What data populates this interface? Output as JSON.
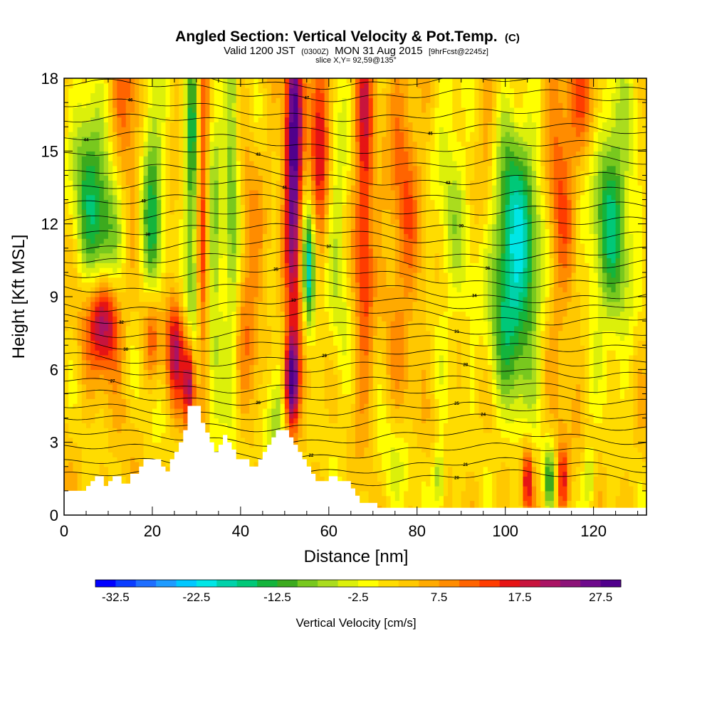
{
  "chart_data": {
    "type": "heatmap",
    "title": "Angled Section: Vertical Velocity & Pot.Temp.",
    "title_suffix": "(C)",
    "subtitle_main": "Valid 1200 JST",
    "subtitle_utc": "(0300Z)",
    "subtitle_date": "MON 31 Aug 2015",
    "subtitle_fcst": "[9hrFcst@2245z]",
    "subtitle2": "slice X,Y= 92,59@135°",
    "xlabel": "Distance [nm]",
    "ylabel": "Height [Kft MSL]",
    "xlim": [
      0,
      132
    ],
    "ylim": [
      0,
      18
    ],
    "x_ticks": [
      0,
      20,
      40,
      60,
      80,
      100,
      120
    ],
    "y_ticks": [
      0,
      3,
      6,
      9,
      12,
      15,
      18
    ],
    "colorbar": {
      "label": "Vertical Velocity [cm/s]",
      "min": -35,
      "max": 30,
      "step": 2.5,
      "tick_values": [
        "-32.5",
        "-22.5",
        "-12.5",
        "-2.5",
        "7.5",
        "17.5",
        "27.5"
      ],
      "colors": [
        "#0000ff",
        "#0a3cff",
        "#1e6eff",
        "#1e9bff",
        "#00c8ff",
        "#00e6e6",
        "#00d2aa",
        "#00c878",
        "#14b43c",
        "#3caa1e",
        "#78c81e",
        "#aadc1e",
        "#dcf00a",
        "#ffff00",
        "#ffdc00",
        "#ffc800",
        "#ffaa00",
        "#ff8c00",
        "#ff6400",
        "#ff3c00",
        "#e61414",
        "#c8143c",
        "#aa1464",
        "#8c1478",
        "#6e0a8c",
        "#50008c"
      ]
    },
    "terrain": [
      [
        0,
        0
      ],
      [
        0,
        1
      ],
      [
        5,
        1
      ],
      [
        5,
        1.2
      ],
      [
        6,
        1.2
      ],
      [
        6,
        1.4
      ],
      [
        7,
        1.4
      ],
      [
        7,
        1.6
      ],
      [
        9,
        1.6
      ],
      [
        9,
        1.2
      ],
      [
        10,
        1.2
      ],
      [
        10,
        1.4
      ],
      [
        11,
        1.4
      ],
      [
        11,
        1.6
      ],
      [
        13,
        1.6
      ],
      [
        13,
        1.3
      ],
      [
        15,
        1.3
      ],
      [
        15,
        1.7
      ],
      [
        17,
        1.7
      ],
      [
        17,
        2.0
      ],
      [
        18,
        2.0
      ],
      [
        18,
        2.3
      ],
      [
        22,
        2.3
      ],
      [
        22,
        2.0
      ],
      [
        23,
        2.0
      ],
      [
        23,
        1.8
      ],
      [
        24,
        1.8
      ],
      [
        24,
        2.3
      ],
      [
        25,
        2.3
      ],
      [
        25,
        2.6
      ],
      [
        26,
        2.6
      ],
      [
        26,
        3.0
      ],
      [
        27,
        3.0
      ],
      [
        27,
        3.5
      ],
      [
        28,
        3.5
      ],
      [
        28,
        4.5
      ],
      [
        31,
        4.5
      ],
      [
        31,
        3.8
      ],
      [
        32,
        3.8
      ],
      [
        32,
        3.4
      ],
      [
        33,
        3.4
      ],
      [
        33,
        3.0
      ],
      [
        34,
        3.0
      ],
      [
        34,
        2.6
      ],
      [
        35,
        2.6
      ],
      [
        35,
        2.9
      ],
      [
        36,
        2.9
      ],
      [
        36,
        3.3
      ],
      [
        37,
        3.3
      ],
      [
        37,
        3.0
      ],
      [
        38,
        3.0
      ],
      [
        38,
        2.7
      ],
      [
        39,
        2.7
      ],
      [
        39,
        2.3
      ],
      [
        42,
        2.3
      ],
      [
        42,
        2.0
      ],
      [
        44,
        2.0
      ],
      [
        44,
        2.3
      ],
      [
        45,
        2.3
      ],
      [
        45,
        2.6
      ],
      [
        46,
        2.6
      ],
      [
        46,
        2.9
      ],
      [
        47,
        2.9
      ],
      [
        47,
        3.2
      ],
      [
        48,
        3.2
      ],
      [
        48,
        3.5
      ],
      [
        51,
        3.5
      ],
      [
        51,
        3.2
      ],
      [
        52,
        3.2
      ],
      [
        52,
        2.9
      ],
      [
        53,
        2.9
      ],
      [
        53,
        2.6
      ],
      [
        54,
        2.6
      ],
      [
        54,
        2.3
      ],
      [
        55,
        2.3
      ],
      [
        55,
        2.0
      ],
      [
        56,
        2.0
      ],
      [
        56,
        1.7
      ],
      [
        57,
        1.7
      ],
      [
        57,
        1.4
      ],
      [
        60,
        1.4
      ],
      [
        60,
        1.6
      ],
      [
        62,
        1.6
      ],
      [
        62,
        1.4
      ],
      [
        65,
        1.4
      ],
      [
        65,
        1.1
      ],
      [
        66,
        1.1
      ],
      [
        66,
        0.8
      ],
      [
        67,
        0.8
      ],
      [
        67,
        0.5
      ],
      [
        71,
        0.5
      ],
      [
        71,
        0.3
      ],
      [
        132,
        0.3
      ],
      [
        132,
        0
      ]
    ],
    "theta_contours": [
      {
        "label": "48",
        "base": 17.9,
        "label_x": 10
      },
      {
        "label": "47",
        "base": 17.4,
        "label_x": 55
      },
      {
        "label": "46",
        "base": 16.6,
        "label_x": 15
      },
      {
        "label": "45",
        "base": 16.0,
        "label_x": 83
      },
      {
        "label": "44",
        "base": 15.3,
        "label_x": 5
      },
      {
        "label": "43",
        "base": 14.7,
        "label_x": 44
      },
      {
        "label": "42",
        "base": 14.0,
        "label_x": 87
      },
      {
        "label": "41",
        "base": 13.4,
        "label_x": 50
      },
      {
        "label": "40",
        "base": 12.8,
        "label_x": 18
      },
      {
        "label": "39",
        "base": 12.2,
        "label_x": 90
      },
      {
        "label": "38",
        "base": 11.6,
        "label_x": 19
      },
      {
        "label": "37",
        "base": 11.0,
        "label_x": 60
      },
      {
        "label": "36",
        "base": 10.5,
        "label_x": 96
      },
      {
        "label": "35",
        "base": 9.9,
        "label_x": 48
      },
      {
        "label": "34",
        "base": 9.3,
        "label_x": 93
      },
      {
        "label": "33",
        "base": 8.7,
        "label_x": 52
      },
      {
        "label": "32",
        "base": 8.2,
        "label_x": 13
      },
      {
        "label": "31",
        "base": 7.6,
        "label_x": 89
      },
      {
        "label": "30",
        "base": 7.1,
        "label_x": 14
      },
      {
        "label": "29",
        "base": 6.5,
        "label_x": 59
      },
      {
        "label": "28",
        "base": 6.0,
        "label_x": 91
      },
      {
        "label": "27",
        "base": 5.4,
        "label_x": 11
      },
      {
        "label": "26",
        "base": 4.9,
        "label_x": 44
      },
      {
        "label": "25",
        "base": 4.3,
        "label_x": 89
      },
      {
        "label": "24",
        "base": 3.8,
        "label_x": 95
      },
      {
        "label": "23",
        "base": 3.2,
        "label_x": 51
      },
      {
        "label": "22",
        "base": 2.6,
        "label_x": 56
      },
      {
        "label": "21",
        "base": 2.0,
        "label_x": 91
      },
      {
        "label": "20",
        "base": 1.5,
        "label_x": 89
      }
    ],
    "w_features": [
      {
        "x": 9,
        "h": 8.0,
        "sx": 2.5,
        "sh": 1.4,
        "amp": 22
      },
      {
        "x": 9,
        "h": 12.0,
        "sx": 3.5,
        "sh": 2.2,
        "amp": -17
      },
      {
        "x": 5,
        "h": 15.0,
        "sx": 2.5,
        "sh": 2.0,
        "amp": -12
      },
      {
        "x": 14,
        "h": 16.0,
        "sx": 2.5,
        "sh": 3.0,
        "amp": 9
      },
      {
        "x": 20,
        "h": 12.5,
        "sx": 1.8,
        "sh": 5.0,
        "amp": -15
      },
      {
        "x": 20,
        "h": 7.5,
        "sx": 1.5,
        "sh": 1.5,
        "amp": 15
      },
      {
        "x": 25,
        "h": 6.8,
        "sx": 1.5,
        "sh": 1.5,
        "amp": 16
      },
      {
        "x": 28.5,
        "h": 5.5,
        "sx": 1.0,
        "sh": 1.4,
        "amp": 22
      },
      {
        "x": 29,
        "h": 14.0,
        "sx": 1.2,
        "sh": 6.0,
        "amp": -16
      },
      {
        "x": 31.5,
        "h": 13.0,
        "sx": 1.0,
        "sh": 6.0,
        "amp": 14
      },
      {
        "x": 34,
        "h": 11.0,
        "sx": 1.5,
        "sh": 7.0,
        "amp": -10
      },
      {
        "x": 38,
        "h": 13.0,
        "sx": 1.2,
        "sh": 6.0,
        "amp": -12
      },
      {
        "x": 42,
        "h": 9.0,
        "sx": 2.0,
        "sh": 3.0,
        "amp": 7
      },
      {
        "x": 52,
        "h": 15.0,
        "sx": 1.3,
        "sh": 4.5,
        "amp": 28
      },
      {
        "x": 51.5,
        "h": 5.5,
        "sx": 1.2,
        "sh": 1.4,
        "amp": 30
      },
      {
        "x": 55.5,
        "h": 10.0,
        "sx": 1.0,
        "sh": 1.8,
        "amp": -22
      },
      {
        "x": 58,
        "h": 16.0,
        "sx": 1.5,
        "sh": 3.0,
        "amp": 16
      },
      {
        "x": 48,
        "h": 4.0,
        "sx": 2.0,
        "sh": 1.5,
        "amp": -12
      },
      {
        "x": 62,
        "h": 12.0,
        "sx": 2.0,
        "sh": 6.0,
        "amp": -7
      },
      {
        "x": 68,
        "h": 14.0,
        "sx": 1.5,
        "sh": 6.0,
        "amp": 14
      },
      {
        "x": 77,
        "h": 13.0,
        "sx": 2.5,
        "sh": 5.0,
        "amp": 8
      },
      {
        "x": 88,
        "h": 13.0,
        "sx": 3.0,
        "sh": 5.0,
        "amp": -7
      },
      {
        "x": 85,
        "h": 1.5,
        "sx": 1.0,
        "sh": 1.0,
        "amp": -12
      },
      {
        "x": 96,
        "h": 14.0,
        "sx": 2.0,
        "sh": 4.0,
        "amp": 7
      },
      {
        "x": 102,
        "h": 10.5,
        "sx": 4.5,
        "sh": 4.0,
        "amp": -24
      },
      {
        "x": 105,
        "h": 1.5,
        "sx": 0.8,
        "sh": 1.0,
        "amp": 16
      },
      {
        "x": 110,
        "h": 1.5,
        "sx": 0.8,
        "sh": 1.0,
        "amp": -14
      },
      {
        "x": 113,
        "h": 1.5,
        "sx": 0.8,
        "sh": 1.0,
        "amp": 14
      },
      {
        "x": 112,
        "h": 13.0,
        "sx": 2.5,
        "sh": 5.0,
        "amp": 9
      },
      {
        "x": 119,
        "h": 1.5,
        "sx": 1.0,
        "sh": 1.0,
        "amp": -10
      },
      {
        "x": 124,
        "h": 12.5,
        "sx": 3.5,
        "sh": 4.0,
        "amp": -17
      },
      {
        "x": 118,
        "h": 17.0,
        "sx": 3.0,
        "sh": 2.0,
        "amp": 9
      },
      {
        "x": 75,
        "h": 2.0,
        "sx": 4.0,
        "sh": 1.5,
        "amp": -5
      }
    ]
  }
}
